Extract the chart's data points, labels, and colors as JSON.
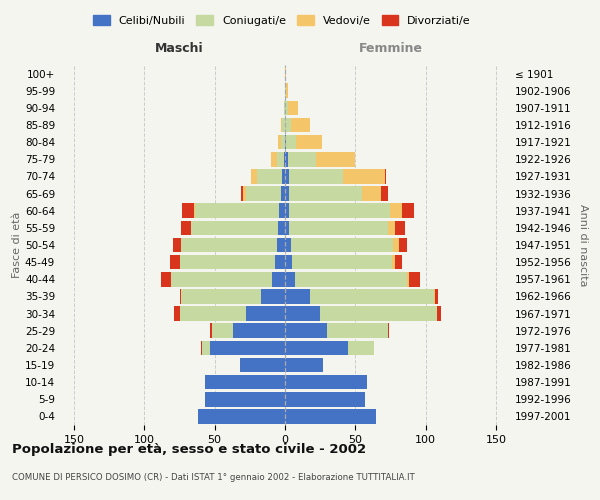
{
  "age_groups": [
    "0-4",
    "5-9",
    "10-14",
    "15-19",
    "20-24",
    "25-29",
    "30-34",
    "35-39",
    "40-44",
    "45-49",
    "50-54",
    "55-59",
    "60-64",
    "65-69",
    "70-74",
    "75-79",
    "80-84",
    "85-89",
    "90-94",
    "95-99",
    "100+"
  ],
  "birth_years": [
    "1997-2001",
    "1992-1996",
    "1987-1991",
    "1982-1986",
    "1977-1981",
    "1972-1976",
    "1967-1971",
    "1962-1966",
    "1957-1961",
    "1952-1956",
    "1947-1951",
    "1942-1946",
    "1937-1941",
    "1932-1936",
    "1927-1931",
    "1922-1926",
    "1917-1921",
    "1912-1916",
    "1907-1911",
    "1902-1906",
    "≤ 1901"
  ],
  "male": {
    "celibi": [
      62,
      57,
      57,
      32,
      53,
      37,
      28,
      17,
      9,
      7,
      6,
      5,
      4,
      3,
      2,
      1,
      0,
      0,
      0,
      0,
      0
    ],
    "coniugati": [
      0,
      0,
      0,
      0,
      6,
      15,
      47,
      57,
      72,
      68,
      68,
      62,
      60,
      25,
      18,
      5,
      3,
      2,
      1,
      0,
      0
    ],
    "vedovi": [
      0,
      0,
      0,
      0,
      0,
      0,
      0,
      0,
      0,
      0,
      0,
      0,
      1,
      2,
      4,
      4,
      2,
      1,
      0,
      0,
      0
    ],
    "divorziati": [
      0,
      0,
      0,
      0,
      1,
      1,
      4,
      1,
      7,
      7,
      6,
      7,
      8,
      1,
      0,
      0,
      0,
      0,
      0,
      0,
      0
    ]
  },
  "female": {
    "nubili": [
      65,
      57,
      58,
      27,
      45,
      30,
      25,
      18,
      7,
      5,
      4,
      3,
      3,
      3,
      3,
      2,
      1,
      0,
      0,
      0,
      0
    ],
    "coniugate": [
      0,
      0,
      0,
      0,
      18,
      43,
      83,
      88,
      80,
      71,
      73,
      70,
      72,
      52,
      38,
      20,
      7,
      4,
      2,
      1,
      0
    ],
    "vedove": [
      0,
      0,
      0,
      0,
      0,
      0,
      0,
      1,
      1,
      2,
      4,
      5,
      8,
      13,
      30,
      28,
      18,
      14,
      7,
      1,
      1
    ],
    "divorziate": [
      0,
      0,
      0,
      0,
      0,
      1,
      3,
      2,
      8,
      5,
      6,
      7,
      9,
      5,
      1,
      0,
      0,
      0,
      0,
      0,
      0
    ]
  },
  "colors": {
    "celibi": "#4472c4",
    "coniugati": "#c5d9a0",
    "vedovi": "#f5c56a",
    "divorziati": "#d9341c"
  },
  "title": "Popolazione per età, sesso e stato civile - 2002",
  "subtitle": "COMUNE DI PERSICO DOSIMO (CR) - Dati ISTAT 1° gennaio 2002 - Elaborazione TUTTITALIA.IT",
  "xlabel_left": "Maschi",
  "xlabel_right": "Femmine",
  "ylabel_left": "Fasce di età",
  "ylabel_right": "Anni di nascita",
  "legend": [
    "Celibi/Nubili",
    "Coniugati/e",
    "Vedovi/e",
    "Divorziati/e"
  ],
  "xlim": 160,
  "background_color": "#f5f5f0",
  "grid_color": "#cccccc"
}
